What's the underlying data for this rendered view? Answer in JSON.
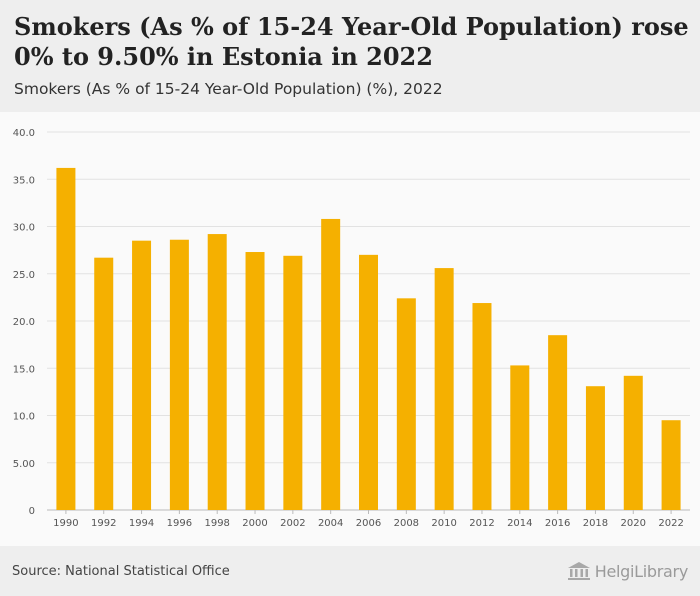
{
  "header": {
    "title": "Smokers (As % of 15-24 Year-Old Population) rose 0% to 9.50% in Estonia in 2022",
    "subtitle": "Smokers (As % of 15-24 Year-Old Population) (%), 2022"
  },
  "footer": {
    "source": "Source: National Statistical Office",
    "brand": "HelgiLibrary",
    "brand_icon": "library-building-icon"
  },
  "colors": {
    "bar": "#f5b000",
    "grid": "#e2e2e2",
    "axis_text": "#555555"
  },
  "chart_data": {
    "type": "bar",
    "categories": [
      "1990",
      "1992",
      "1994",
      "1996",
      "1998",
      "2000",
      "2002",
      "2004",
      "2006",
      "2008",
      "2010",
      "2012",
      "2014",
      "2016",
      "2018",
      "2020",
      "2022"
    ],
    "values": [
      36.2,
      26.7,
      28.5,
      28.6,
      29.2,
      27.3,
      26.9,
      30.8,
      27.0,
      22.4,
      25.6,
      21.9,
      15.3,
      18.5,
      13.1,
      14.2,
      9.5
    ],
    "y_ticks": [
      "0",
      "5.00",
      "10.0",
      "15.0",
      "20.0",
      "25.0",
      "30.0",
      "35.0",
      "40.0"
    ],
    "ylim": [
      0,
      40
    ],
    "grid": true,
    "xlabel": "",
    "ylabel": ""
  }
}
